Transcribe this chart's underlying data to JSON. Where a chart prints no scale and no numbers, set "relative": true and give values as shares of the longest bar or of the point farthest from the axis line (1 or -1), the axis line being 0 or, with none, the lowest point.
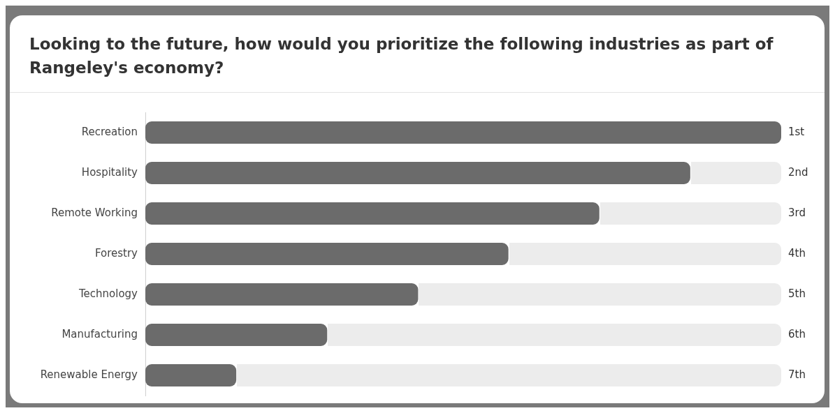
{
  "chart_data": {
    "type": "bar",
    "orientation": "horizontal",
    "relative": true,
    "title": "Looking to the future, how would you prioritize the following industries as part of Rangeley's economy?",
    "categories": [
      "Recreation",
      "Hospitality",
      "Remote Working",
      "Forestry",
      "Technology",
      "Manufacturing",
      "Renewable Energy"
    ],
    "values": [
      1,
      0.857,
      0.714,
      0.571,
      0.429,
      0.286,
      0.143
    ],
    "annotations": [
      "1st",
      "2nd",
      "3rd",
      "4th",
      "5th",
      "6th",
      "7th"
    ],
    "color": "#6b6b6b",
    "legend": false
  }
}
